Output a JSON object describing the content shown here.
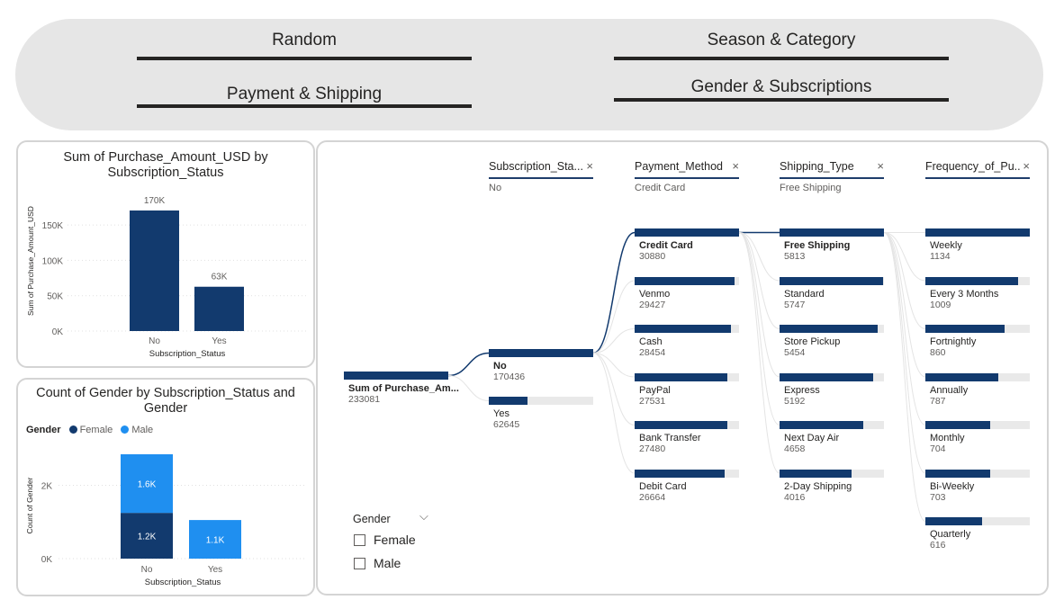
{
  "nav": {
    "buttons": [
      {
        "label": "Random"
      },
      {
        "label": "Season & Category"
      },
      {
        "label": "Payment & Shipping"
      },
      {
        "label": "Gender & Subscriptions"
      }
    ]
  },
  "colors": {
    "dark_blue": "#123a6e",
    "light_blue": "#1f8ff0",
    "panel_bg": "#e6e6e6",
    "track": "#e9e9e9"
  },
  "chart1": {
    "title": "Sum of Purchase_Amount_USD by Subscription_Status",
    "title_line1": "Sum of Purchase_Amount_USD by",
    "title_line2": "Subscription_Status",
    "chart_data": {
      "type": "bar",
      "categories": [
        "No",
        "Yes"
      ],
      "values": [
        170436,
        62645
      ],
      "data_labels": [
        "170K",
        "63K"
      ],
      "xlabel": "Subscription_Status",
      "ylabel": "Sum of Purchase_Amount_USD",
      "yticks": [
        "0K",
        "50K",
        "100K",
        "150K"
      ],
      "ylim": [
        0,
        170436
      ],
      "grid": true
    }
  },
  "chart2": {
    "title_line1": "Count of Gender by Subscription_Status and",
    "title_line2": "Gender",
    "legend_title": "Gender",
    "legend": [
      {
        "name": "Female",
        "color": "#123a6e"
      },
      {
        "name": "Male",
        "color": "#1f8ff0"
      }
    ],
    "chart_data": {
      "type": "bar",
      "stacked": true,
      "categories": [
        "No",
        "Yes"
      ],
      "series": [
        {
          "name": "Female",
          "values": [
            1248,
            0
          ],
          "labels": [
            "1.2K",
            ""
          ]
        },
        {
          "name": "Male",
          "values": [
            1599,
            1053
          ],
          "labels": [
            "1.6K",
            "1.1K"
          ]
        }
      ],
      "xlabel": "Subscription_Status",
      "ylabel": "Count of Gender",
      "yticks": [
        "0K",
        "2K"
      ],
      "ylim": [
        0,
        2847
      ],
      "grid": true
    }
  },
  "tree": {
    "root": {
      "label": "Sum of Purchase_Am...",
      "value": "233081"
    },
    "levels": [
      {
        "header": "Subscription_Sta...",
        "selected": "No",
        "nodes": [
          {
            "label": "No",
            "value": "170436",
            "v": 170436,
            "sel": true
          },
          {
            "label": "Yes",
            "value": "62645",
            "v": 62645,
            "sel": false
          }
        ]
      },
      {
        "header": "Payment_Method",
        "selected": "Credit Card",
        "nodes": [
          {
            "label": "Credit Card",
            "value": "30880",
            "v": 30880,
            "sel": true
          },
          {
            "label": "Venmo",
            "value": "29427",
            "v": 29427,
            "sel": false
          },
          {
            "label": "Cash",
            "value": "28454",
            "v": 28454,
            "sel": false
          },
          {
            "label": "PayPal",
            "value": "27531",
            "v": 27531,
            "sel": false
          },
          {
            "label": "Bank Transfer",
            "value": "27480",
            "v": 27480,
            "sel": false
          },
          {
            "label": "Debit Card",
            "value": "26664",
            "v": 26664,
            "sel": false
          }
        ]
      },
      {
        "header": "Shipping_Type",
        "selected": "Free Shipping",
        "nodes": [
          {
            "label": "Free Shipping",
            "value": "5813",
            "v": 5813,
            "sel": true
          },
          {
            "label": "Standard",
            "value": "5747",
            "v": 5747,
            "sel": false
          },
          {
            "label": "Store Pickup",
            "value": "5454",
            "v": 5454,
            "sel": false
          },
          {
            "label": "Express",
            "value": "5192",
            "v": 5192,
            "sel": false
          },
          {
            "label": "Next Day Air",
            "value": "4658",
            "v": 4658,
            "sel": false
          },
          {
            "label": "2-Day Shipping",
            "value": "4016",
            "v": 4016,
            "sel": false
          }
        ]
      },
      {
        "header": "Frequency_of_Pu...",
        "selected": "",
        "nodes": [
          {
            "label": "Weekly",
            "value": "1134",
            "v": 1134,
            "sel": false
          },
          {
            "label": "Every 3 Months",
            "value": "1009",
            "v": 1009,
            "sel": false
          },
          {
            "label": "Fortnightly",
            "value": "860",
            "v": 860,
            "sel": false
          },
          {
            "label": "Annually",
            "value": "787",
            "v": 787,
            "sel": false
          },
          {
            "label": "Monthly",
            "value": "704",
            "v": 704,
            "sel": false
          },
          {
            "label": "Bi-Weekly",
            "value": "703",
            "v": 703,
            "sel": false
          },
          {
            "label": "Quarterly",
            "value": "616",
            "v": 616,
            "sel": false
          }
        ]
      }
    ]
  },
  "slicer": {
    "title": "Gender",
    "options": [
      {
        "label": "Female"
      },
      {
        "label": "Male"
      }
    ]
  }
}
